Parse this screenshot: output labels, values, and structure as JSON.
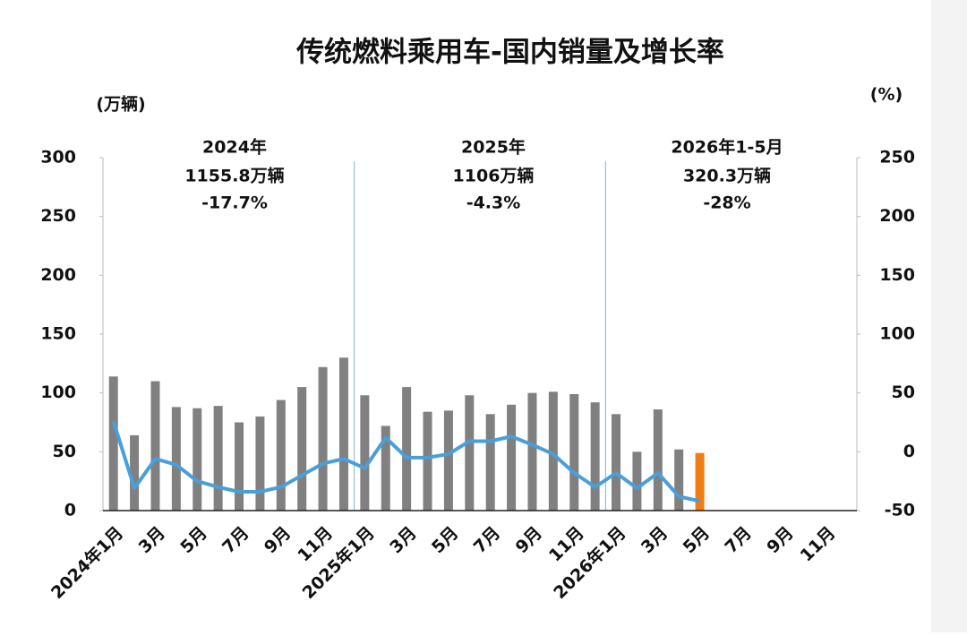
{
  "chart_data": {
    "type": "bar",
    "title": "传统燃料乘用车-国内销量及增长率",
    "ylabel": "(万辆)",
    "y2label": "(%)",
    "categories": [
      "2024年1月",
      null,
      "3月",
      null,
      "5月",
      null,
      "7月",
      null,
      "9月",
      null,
      "11月",
      null,
      "2025年1月",
      null,
      "3月",
      null,
      "5月",
      null,
      "7月",
      null,
      "9月",
      null,
      "11月",
      null,
      "2026年1月",
      null,
      "3月",
      null,
      "5月",
      null,
      "7月",
      null,
      "9月",
      null,
      "11月",
      null
    ],
    "series": [
      {
        "type": "bar",
        "color": "#808080",
        "values": [
          114,
          64,
          110,
          88,
          87,
          89,
          75,
          80,
          94,
          105,
          122,
          130,
          98,
          72,
          105,
          84,
          85,
          98,
          82,
          90,
          100,
          101,
          99,
          92,
          82,
          50,
          86,
          52,
          null,
          null,
          null,
          null,
          null,
          null,
          null,
          null
        ]
      },
      {
        "type": "bar",
        "color": "#f07d14",
        "values": [
          null,
          null,
          null,
          null,
          null,
          null,
          null,
          null,
          null,
          null,
          null,
          null,
          null,
          null,
          null,
          null,
          null,
          null,
          null,
          null,
          null,
          null,
          null,
          null,
          null,
          null,
          null,
          null,
          49,
          null,
          null,
          null,
          null,
          null,
          null,
          null
        ]
      },
      {
        "type": "line",
        "axis": "y2",
        "color": "#4a9fd8",
        "values": [
          26,
          -31,
          -6,
          -11,
          -25,
          -30,
          -34,
          -34,
          -30,
          -20,
          -10,
          -6,
          -14,
          12,
          -5,
          -5,
          -2,
          9,
          9,
          13,
          6,
          -2,
          -18,
          -30,
          -18,
          -31,
          -18,
          -38,
          -42,
          null,
          null,
          null,
          null,
          null,
          null,
          null
        ]
      }
    ],
    "ylim": [
      0,
      300
    ],
    "yticks": [
      0,
      50,
      100,
      150,
      200,
      250,
      300
    ],
    "y2lim": [
      -50,
      250
    ],
    "y2ticks": [
      -50,
      0,
      50,
      100,
      150,
      200,
      250
    ],
    "annotations": [
      {
        "year": "2024年",
        "total": "1155.8万辆",
        "growth": "-17.7%"
      },
      {
        "year": "2025年",
        "total": "1106万辆",
        "growth": "-4.3%"
      },
      {
        "year": "2026年1-5月",
        "total": "320.3万辆",
        "growth": "-28%"
      }
    ],
    "annotation_color": "#e0202a"
  }
}
